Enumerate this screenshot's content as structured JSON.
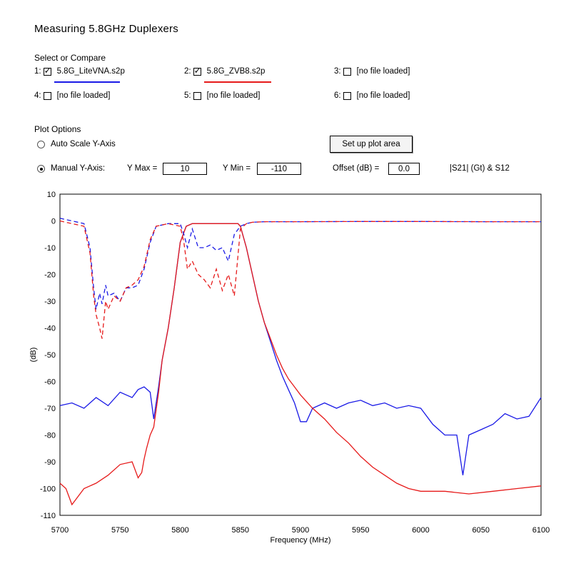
{
  "app": {
    "title": "Measuring 5.8GHz Duplexers"
  },
  "select": {
    "heading": "Select or Compare",
    "slots": [
      {
        "num": "1:",
        "checked": true,
        "label": "5.8G_LiteVNA.s2p",
        "color": "#1a1ae6"
      },
      {
        "num": "2:",
        "checked": true,
        "label": "5.8G_ZVB8.s2p",
        "color": "#e61a1a"
      },
      {
        "num": "3:",
        "checked": false,
        "label": "[no file loaded]"
      },
      {
        "num": "4:",
        "checked": false,
        "label": "[no file loaded]"
      },
      {
        "num": "5:",
        "checked": false,
        "label": "[no file loaded]"
      },
      {
        "num": "6:",
        "checked": false,
        "label": "[no file loaded]"
      }
    ]
  },
  "plot_options": {
    "heading": "Plot Options",
    "auto_scale_label": "Auto Scale Y-Axis",
    "manual_label": "Manual Y-Axis:",
    "ymax_label": "Y Max =",
    "ymax_value": "10",
    "ymin_label": "Y Min =",
    "ymin_value": "-110",
    "offset_label": "Offset (dB) =",
    "offset_value": "0.0",
    "param_label": "|S21| (Gt) & S12",
    "setup_button": "Set up plot area",
    "selected_mode": "manual"
  },
  "chart_data": {
    "type": "line",
    "xlabel": "Frequency (MHz)",
    "ylabel": "(dB)",
    "xlim": [
      5700,
      6100
    ],
    "ylim": [
      -110,
      10
    ],
    "x_ticks": [
      5700,
      5750,
      5800,
      5850,
      5900,
      5950,
      6000,
      6050,
      6100
    ],
    "y_ticks": [
      10,
      0,
      -10,
      -20,
      -30,
      -40,
      -50,
      -60,
      -70,
      -80,
      -90,
      -100,
      -110
    ],
    "grid": true,
    "series": [
      {
        "name": "5.8G_LiteVNA.s2p S21",
        "color": "#1a1ae6",
        "x": [
          5700,
          5710,
          5720,
          5730,
          5740,
          5750,
          5760,
          5765,
          5770,
          5775,
          5778,
          5782,
          5785,
          5790,
          5795,
          5800,
          5805,
          5810,
          5815,
          5820,
          5825,
          5830,
          5835,
          5840,
          5845,
          5848,
          5850,
          5855,
          5860,
          5865,
          5870,
          5875,
          5880,
          5885,
          5890,
          5895,
          5900,
          5905,
          5910,
          5920,
          5930,
          5940,
          5950,
          5960,
          5970,
          5980,
          5990,
          6000,
          6010,
          6020,
          6030,
          6035,
          6040,
          6050,
          6060,
          6070,
          6080,
          6090,
          6100
        ],
        "y": [
          -69,
          -68,
          -70,
          -66,
          -69,
          -64,
          -66,
          -63,
          -62,
          -64,
          -74,
          -62,
          -52,
          -40,
          -25,
          -8,
          -2,
          -1,
          -1,
          -1,
          -1,
          -1,
          -1,
          -1,
          -1,
          -1,
          -2,
          -10,
          -20,
          -30,
          -38,
          -45,
          -52,
          -58,
          -63,
          -68,
          -75,
          -75,
          -70,
          -68,
          -70,
          -68,
          -67,
          -69,
          -68,
          -70,
          -69,
          -70,
          -76,
          -80,
          -80,
          -95,
          -80,
          -78,
          -76,
          -72,
          -74,
          -73,
          -66
        ]
      },
      {
        "name": "5.8G_ZVB8.s2p S21",
        "color": "#e61a1a",
        "x": [
          5700,
          5705,
          5710,
          5720,
          5730,
          5740,
          5750,
          5760,
          5765,
          5768,
          5770,
          5772,
          5775,
          5778,
          5782,
          5785,
          5790,
          5795,
          5800,
          5805,
          5810,
          5815,
          5820,
          5825,
          5830,
          5835,
          5840,
          5845,
          5848,
          5850,
          5855,
          5860,
          5865,
          5870,
          5875,
          5880,
          5885,
          5890,
          5895,
          5900,
          5910,
          5920,
          5930,
          5940,
          5950,
          5960,
          5970,
          5980,
          5990,
          6000,
          6020,
          6040,
          6060,
          6080,
          6100
        ],
        "y": [
          -98,
          -100,
          -106,
          -100,
          -98,
          -95,
          -91,
          -90,
          -96,
          -94,
          -89,
          -85,
          -80,
          -77,
          -64,
          -52,
          -40,
          -25,
          -8,
          -2,
          -1,
          -1,
          -1,
          -1,
          -1,
          -1,
          -1,
          -1,
          -1,
          -2,
          -10,
          -20,
          -30,
          -38,
          -44,
          -50,
          -55,
          -59,
          -62,
          -65,
          -70,
          -74,
          -79,
          -83,
          -88,
          -92,
          -95,
          -98,
          -100,
          -101,
          -101,
          -102,
          -101,
          -100,
          -99
        ]
      },
      {
        "name": "5.8G_LiteVNA.s2p S11",
        "color": "#1a1ae6",
        "dashed": true,
        "x": [
          5700,
          5710,
          5720,
          5725,
          5728,
          5730,
          5733,
          5735,
          5738,
          5740,
          5745,
          5750,
          5755,
          5760,
          5765,
          5770,
          5775,
          5780,
          5790,
          5800,
          5803,
          5806,
          5810,
          5815,
          5820,
          5825,
          5830,
          5835,
          5840,
          5845,
          5850,
          5855,
          5860,
          5870,
          5880,
          5900,
          5950,
          6000,
          6050,
          6100
        ],
        "y": [
          1,
          0,
          -1,
          -10,
          -25,
          -33,
          -27,
          -31,
          -24,
          -28,
          -27,
          -30,
          -25,
          -25,
          -24,
          -18,
          -8,
          -2,
          -1,
          -1,
          -5,
          -10,
          -3,
          -10,
          -10,
          -9,
          -11,
          -10,
          -15,
          -5,
          -2,
          -1,
          -0.5,
          -0.3,
          -0.3,
          -0.3,
          -0.2,
          -0.2,
          -0.3,
          -0.3
        ]
      },
      {
        "name": "5.8G_ZVB8.s2p S11",
        "color": "#e61a1a",
        "dashed": true,
        "x": [
          5700,
          5710,
          5720,
          5725,
          5728,
          5730,
          5733,
          5735,
          5738,
          5740,
          5745,
          5750,
          5755,
          5760,
          5765,
          5770,
          5775,
          5780,
          5790,
          5800,
          5803,
          5806,
          5810,
          5815,
          5820,
          5825,
          5830,
          5835,
          5840,
          5845,
          5850,
          5855,
          5860,
          5870,
          5880,
          5900,
          5950,
          6000,
          6050,
          6100
        ],
        "y": [
          0,
          -1,
          -2,
          -12,
          -28,
          -35,
          -40,
          -44,
          -30,
          -33,
          -28,
          -30,
          -25,
          -24,
          -22,
          -17,
          -7,
          -2,
          -1,
          -2,
          -8,
          -18,
          -15,
          -20,
          -22,
          -25,
          -18,
          -26,
          -20,
          -28,
          -3,
          -1,
          -0.5,
          -0.3,
          -0.3,
          -0.3,
          -0.2,
          -0.2,
          -0.3,
          -0.3
        ]
      }
    ]
  }
}
